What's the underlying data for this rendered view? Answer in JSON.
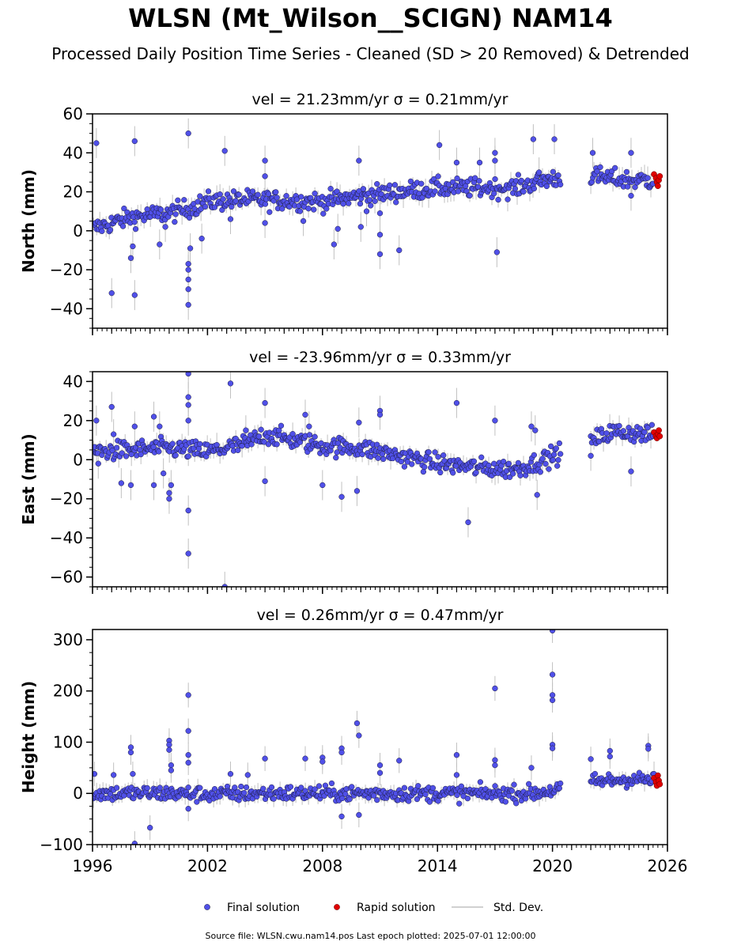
{
  "title": "WLSN (Mt_Wilson__SCIGN) NAM14",
  "subtitle": "Processed Daily Position Time Series - Cleaned (SD > 20 Removed) & Detrended",
  "footer": "Source file: WLSN.cwu.nam14.pos  Last epoch plotted: 2025-07-01 12:00:00",
  "colors": {
    "final": "#5050e8",
    "rapid": "#e00000",
    "stddev": "#c0c0c0",
    "edge": "#1a1a3a"
  },
  "chart_data": {
    "type": "scatter",
    "xlim": [
      1996,
      2026
    ],
    "xticks": [
      "1996",
      "2002",
      "2008",
      "2014",
      "2020",
      "2026"
    ],
    "legend": {
      "position": "bottom-center",
      "final_label": "Final solution",
      "rapid_label": "Rapid solution",
      "sd_label": "Std. Dev."
    },
    "panels": [
      {
        "ylabel": "North (mm)",
        "title": "vel = 21.23mm/yr   σ = 0.21mm/yr",
        "ylim": [
          -50,
          60
        ],
        "yticks": [
          -40,
          -20,
          0,
          20,
          40,
          60
        ],
        "trend": [
          [
            1996,
            1
          ],
          [
            1998,
            7
          ],
          [
            2000,
            9
          ],
          [
            2001.2,
            12
          ],
          [
            2002,
            15
          ],
          [
            2004,
            16
          ],
          [
            2006,
            15.5
          ],
          [
            2008,
            15
          ],
          [
            2010,
            18
          ],
          [
            2012,
            20
          ],
          [
            2014,
            22
          ],
          [
            2016,
            22
          ],
          [
            2018,
            22
          ],
          [
            2020,
            27
          ],
          [
            2022,
            28
          ],
          [
            2024,
            26
          ],
          [
            2025.5,
            26
          ]
        ],
        "noise": 3.5,
        "outliers": [
          [
            1996.2,
            45
          ],
          [
            1997,
            -32
          ],
          [
            1998.2,
            46
          ],
          [
            1998.2,
            -33
          ],
          [
            1998,
            -14
          ],
          [
            1998.1,
            -8
          ],
          [
            1999.5,
            -7
          ],
          [
            1999.8,
            2
          ],
          [
            2001,
            50
          ],
          [
            2001,
            -38
          ],
          [
            2001,
            -30
          ],
          [
            2001,
            -25
          ],
          [
            2001,
            -20
          ],
          [
            2001,
            -17
          ],
          [
            2001.1,
            -9
          ],
          [
            2001.7,
            -4
          ],
          [
            2002.9,
            41
          ],
          [
            2003.2,
            6
          ],
          [
            2005,
            36
          ],
          [
            2005,
            28
          ],
          [
            2005,
            4
          ],
          [
            2007,
            5
          ],
          [
            2008.6,
            -7
          ],
          [
            2008.8,
            1
          ],
          [
            2009.9,
            36
          ],
          [
            2010,
            2
          ],
          [
            2010.3,
            10
          ],
          [
            2011,
            -12
          ],
          [
            2011,
            -2
          ],
          [
            2011,
            9
          ],
          [
            2012,
            -10
          ],
          [
            2014.1,
            44
          ],
          [
            2015,
            35
          ],
          [
            2016.2,
            35
          ],
          [
            2017,
            40
          ],
          [
            2017,
            36
          ],
          [
            2017.1,
            -11
          ],
          [
            2019,
            47
          ],
          [
            2019.3,
            30
          ],
          [
            2020.1,
            47
          ],
          [
            2022.1,
            40
          ],
          [
            2024.1,
            40
          ],
          [
            2024.1,
            18
          ]
        ],
        "rapid": [
          [
            2025.3,
            29
          ],
          [
            2025.4,
            27
          ],
          [
            2025.45,
            25
          ],
          [
            2025.5,
            23
          ],
          [
            2025.55,
            26
          ],
          [
            2025.6,
            28
          ]
        ]
      },
      {
        "ylabel": "East (mm)",
        "title": "vel = -23.96mm/yr   σ = 0.33mm/yr",
        "ylim": [
          -65,
          45
        ],
        "yticks": [
          -60,
          -40,
          -20,
          0,
          20,
          40
        ],
        "trend": [
          [
            1996,
            4
          ],
          [
            1998,
            5
          ],
          [
            2000,
            6
          ],
          [
            2002,
            4
          ],
          [
            2004,
            8
          ],
          [
            2005,
            13
          ],
          [
            2007,
            9
          ],
          [
            2008,
            7
          ],
          [
            2010,
            6
          ],
          [
            2012,
            2
          ],
          [
            2014,
            -2
          ],
          [
            2016,
            -4
          ],
          [
            2018,
            -5
          ],
          [
            2019,
            -2
          ],
          [
            2020,
            2
          ],
          [
            2022,
            9
          ],
          [
            2023,
            14
          ],
          [
            2024,
            14
          ],
          [
            2025.5,
            12
          ]
        ],
        "noise": 3.5,
        "outliers": [
          [
            1996.2,
            20
          ],
          [
            1996.3,
            -2
          ],
          [
            1997,
            27
          ],
          [
            1997.1,
            13
          ],
          [
            1997.5,
            -12
          ],
          [
            1998,
            -13
          ],
          [
            1998.2,
            17
          ],
          [
            1999.2,
            22
          ],
          [
            1999.2,
            -13
          ],
          [
            1999.5,
            17
          ],
          [
            1999.7,
            -7
          ],
          [
            2000,
            -20
          ],
          [
            2000,
            -17
          ],
          [
            2000.1,
            -13
          ],
          [
            2001,
            44
          ],
          [
            2001,
            32
          ],
          [
            2001,
            28
          ],
          [
            2001,
            20
          ],
          [
            2001,
            -26
          ],
          [
            2001,
            -48
          ],
          [
            2002.9,
            -65
          ],
          [
            2003.2,
            39
          ],
          [
            2004,
            15
          ],
          [
            2005,
            29
          ],
          [
            2005,
            -11
          ],
          [
            2007.1,
            23
          ],
          [
            2007.3,
            17
          ],
          [
            2008,
            -13
          ],
          [
            2009,
            -19
          ],
          [
            2009.8,
            -16
          ],
          [
            2009.9,
            19
          ],
          [
            2011,
            25
          ],
          [
            2011,
            23
          ],
          [
            2015,
            29
          ],
          [
            2015.6,
            -32
          ],
          [
            2017,
            20
          ],
          [
            2018.9,
            17
          ],
          [
            2019.1,
            15
          ],
          [
            2019.2,
            -18
          ],
          [
            2022,
            2
          ],
          [
            2024.1,
            -6
          ]
        ],
        "rapid": [
          [
            2025.3,
            14
          ],
          [
            2025.4,
            12
          ],
          [
            2025.45,
            11
          ],
          [
            2025.5,
            13
          ],
          [
            2025.55,
            15
          ],
          [
            2025.6,
            12
          ]
        ]
      },
      {
        "ylabel": "Height (mm)",
        "title": "vel = 0.26mm/yr   σ = 0.47mm/yr",
        "ylim": [
          -100,
          320
        ],
        "yticks": [
          -100,
          0,
          100,
          200,
          300
        ],
        "trend": [
          [
            1996,
            0
          ],
          [
            2000,
            0
          ],
          [
            2002,
            -2
          ],
          [
            2005,
            0
          ],
          [
            2010,
            0
          ],
          [
            2015,
            0
          ],
          [
            2019,
            0
          ],
          [
            2020,
            6
          ],
          [
            2022,
            22
          ],
          [
            2024,
            28
          ],
          [
            2025.5,
            25
          ]
        ],
        "noise": 11,
        "outliers": [
          [
            1996.1,
            38
          ],
          [
            1997.1,
            36
          ],
          [
            1998,
            90
          ],
          [
            1998,
            80
          ],
          [
            1998.1,
            38
          ],
          [
            1998.2,
            -98
          ],
          [
            1999,
            -67
          ],
          [
            2000,
            103
          ],
          [
            2000,
            95
          ],
          [
            2000,
            85
          ],
          [
            2000.1,
            55
          ],
          [
            2000.1,
            45
          ],
          [
            2001,
            192
          ],
          [
            2001,
            122
          ],
          [
            2001,
            75
          ],
          [
            2001,
            60
          ],
          [
            2001,
            -30
          ],
          [
            2003.2,
            38
          ],
          [
            2004.1,
            36
          ],
          [
            2005,
            68
          ],
          [
            2007.1,
            68
          ],
          [
            2008,
            70
          ],
          [
            2008,
            62
          ],
          [
            2009,
            88
          ],
          [
            2009,
            80
          ],
          [
            2009,
            -45
          ],
          [
            2009.8,
            137
          ],
          [
            2009.9,
            113
          ],
          [
            2009.9,
            -42
          ],
          [
            2011,
            55
          ],
          [
            2011,
            40
          ],
          [
            2012,
            64
          ],
          [
            2015,
            75
          ],
          [
            2015,
            36
          ],
          [
            2017,
            205
          ],
          [
            2017,
            65
          ],
          [
            2017,
            55
          ],
          [
            2018.9,
            50
          ],
          [
            2020,
            318
          ],
          [
            2020,
            232
          ],
          [
            2020,
            192
          ],
          [
            2020,
            182
          ],
          [
            2020,
            95
          ],
          [
            2020,
            88
          ],
          [
            2022,
            67
          ],
          [
            2023,
            83
          ],
          [
            2023,
            72
          ],
          [
            2025,
            93
          ],
          [
            2025,
            87
          ],
          [
            2025.3,
            38
          ]
        ],
        "rapid": [
          [
            2025.3,
            30
          ],
          [
            2025.4,
            22
          ],
          [
            2025.45,
            15
          ],
          [
            2025.5,
            35
          ],
          [
            2025.55,
            25
          ],
          [
            2025.6,
            18
          ]
        ]
      }
    ]
  }
}
